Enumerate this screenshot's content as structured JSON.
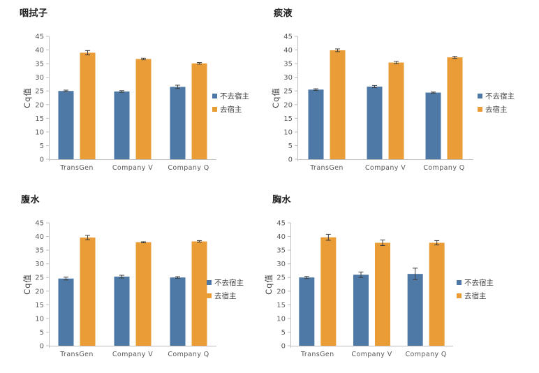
{
  "page": {
    "background": "#ffffff"
  },
  "colors": {
    "series_blue": "#4E78A5",
    "series_orange": "#EA9C37",
    "axis_line": "#BFBFBF",
    "tick_text": "#595959",
    "label_text": "#404040",
    "title_text": "#1F1F1F",
    "error_bar": "#3F3F3F"
  },
  "chart_data": [
    {
      "type": "bar",
      "title": "咽拭子",
      "ylabel": "Cq值",
      "ylim": [
        0,
        45
      ],
      "ytick_step": 5,
      "grid": false,
      "legend_position": "right",
      "categories": [
        "TransGen",
        "Company V",
        "Company Q"
      ],
      "series": [
        {
          "name": "不去宿主",
          "color": "#4E78A5",
          "values": [
            25.0,
            24.8,
            26.5
          ],
          "errors": [
            0.3,
            0.3,
            0.6
          ]
        },
        {
          "name": "去宿主",
          "color": "#EA9C37",
          "values": [
            39.0,
            36.7,
            35.1
          ],
          "errors": [
            0.8,
            0.3,
            0.3
          ]
        }
      ],
      "layout": {
        "axis_left": 70,
        "plot_right": 310,
        "legend_x": 304,
        "title_left": 28
      }
    },
    {
      "type": "bar",
      "title": "痰液",
      "ylabel": "Cq值",
      "ylim": [
        0,
        45
      ],
      "ytick_step": 5,
      "grid": false,
      "legend_position": "right",
      "categories": [
        "TransGen",
        "Company V",
        "Company Q"
      ],
      "series": [
        {
          "name": "不去宿主",
          "color": "#4E78A5",
          "values": [
            25.5,
            26.6,
            24.4
          ],
          "errors": [
            0.3,
            0.4,
            0.2
          ]
        },
        {
          "name": "去宿主",
          "color": "#EA9C37",
          "values": [
            39.9,
            35.4,
            37.3
          ],
          "errors": [
            0.5,
            0.4,
            0.4
          ]
        }
      ],
      "layout": {
        "axis_left": 40,
        "plot_right": 292,
        "legend_x": 298,
        "title_left": 6
      }
    },
    {
      "type": "bar",
      "title": "腹水",
      "ylabel": "Cq值",
      "ylim": [
        0,
        45
      ],
      "ytick_step": 5,
      "grid": false,
      "legend_position": "right",
      "categories": [
        "TransGen",
        "Company V",
        "Company Q"
      ],
      "series": [
        {
          "name": "不去宿主",
          "color": "#4E78A5",
          "values": [
            24.6,
            25.3,
            25.0
          ],
          "errors": [
            0.5,
            0.5,
            0.3
          ]
        },
        {
          "name": "去宿主",
          "color": "#EA9C37",
          "values": [
            39.6,
            37.9,
            38.2
          ],
          "errors": [
            0.8,
            0.2,
            0.3
          ]
        }
      ],
      "layout": {
        "axis_left": 70,
        "plot_right": 310,
        "legend_x": 296,
        "title_left": 30
      }
    },
    {
      "type": "bar",
      "title": "胸水",
      "ylabel": "Cq值",
      "ylim": [
        0,
        45
      ],
      "ytick_step": 5,
      "grid": false,
      "legend_position": "right",
      "categories": [
        "TransGen",
        "Company V",
        "Company Q"
      ],
      "series": [
        {
          "name": "不去宿主",
          "color": "#4E78A5",
          "values": [
            25.0,
            26.0,
            26.3
          ],
          "errors": [
            0.4,
            1.0,
            2.1
          ]
        },
        {
          "name": "去宿主",
          "color": "#EA9C37",
          "values": [
            39.7,
            37.7,
            37.7
          ],
          "errors": [
            1.1,
            1.0,
            0.8
          ]
        }
      ],
      "layout": {
        "axis_left": 30,
        "plot_right": 263,
        "legend_x": 268,
        "title_left": 4
      }
    }
  ]
}
